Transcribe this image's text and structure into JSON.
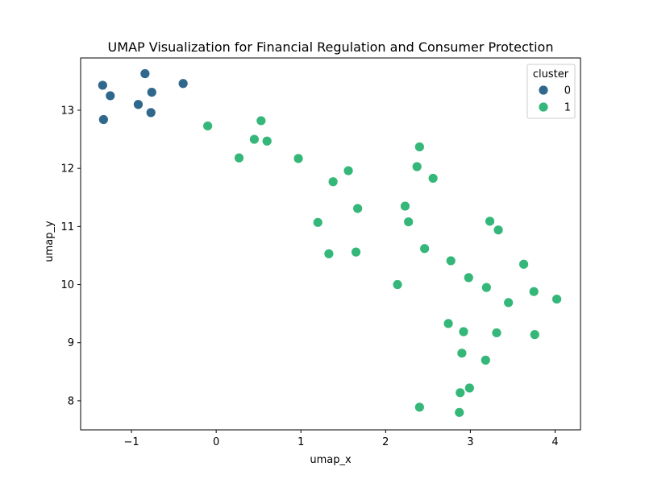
{
  "chart_data": {
    "type": "scatter",
    "title": "UMAP Visualization for Financial Regulation and Consumer Protection",
    "xlabel": "umap_x",
    "ylabel": "umap_y",
    "xlim": [
      -1.6,
      4.3
    ],
    "ylim": [
      7.5,
      13.9
    ],
    "xticks": [
      -1,
      0,
      1,
      2,
      3,
      4
    ],
    "yticks": [
      8,
      9,
      10,
      11,
      12,
      13
    ],
    "xtick_labels": [
      "−1",
      "0",
      "1",
      "2",
      "3",
      "4"
    ],
    "ytick_labels": [
      "8",
      "9",
      "10",
      "11",
      "12",
      "13"
    ],
    "grid": false,
    "legend": {
      "title": "cluster",
      "placement": "top-right",
      "entries": [
        "0",
        "1"
      ]
    },
    "series": [
      {
        "name": "0",
        "color": "#30678d",
        "points": [
          [
            -1.34,
            13.43
          ],
          [
            -0.84,
            13.63
          ],
          [
            -1.25,
            13.25
          ],
          [
            -0.76,
            13.31
          ],
          [
            -0.39,
            13.46
          ],
          [
            -0.92,
            13.1
          ],
          [
            -1.33,
            12.84
          ],
          [
            -0.77,
            12.96
          ]
        ]
      },
      {
        "name": "1",
        "color": "#35b779",
        "points": [
          [
            -0.1,
            12.73
          ],
          [
            0.53,
            12.82
          ],
          [
            0.45,
            12.5
          ],
          [
            0.6,
            12.47
          ],
          [
            0.27,
            12.18
          ],
          [
            0.97,
            12.17
          ],
          [
            2.4,
            12.37
          ],
          [
            2.37,
            12.03
          ],
          [
            1.56,
            11.96
          ],
          [
            2.56,
            11.83
          ],
          [
            1.38,
            11.77
          ],
          [
            2.23,
            11.35
          ],
          [
            1.67,
            11.31
          ],
          [
            1.2,
            11.07
          ],
          [
            2.27,
            11.08
          ],
          [
            3.23,
            11.09
          ],
          [
            3.33,
            10.94
          ],
          [
            2.46,
            10.62
          ],
          [
            1.33,
            10.53
          ],
          [
            1.65,
            10.56
          ],
          [
            2.77,
            10.41
          ],
          [
            3.63,
            10.35
          ],
          [
            2.98,
            10.12
          ],
          [
            2.14,
            10.0
          ],
          [
            3.19,
            9.95
          ],
          [
            3.75,
            9.88
          ],
          [
            4.02,
            9.75
          ],
          [
            3.45,
            9.69
          ],
          [
            2.74,
            9.33
          ],
          [
            2.92,
            9.19
          ],
          [
            3.31,
            9.17
          ],
          [
            3.76,
            9.14
          ],
          [
            2.9,
            8.82
          ],
          [
            3.18,
            8.7
          ],
          [
            2.99,
            8.22
          ],
          [
            2.88,
            8.14
          ],
          [
            2.4,
            7.89
          ],
          [
            2.87,
            7.8
          ]
        ]
      }
    ]
  }
}
